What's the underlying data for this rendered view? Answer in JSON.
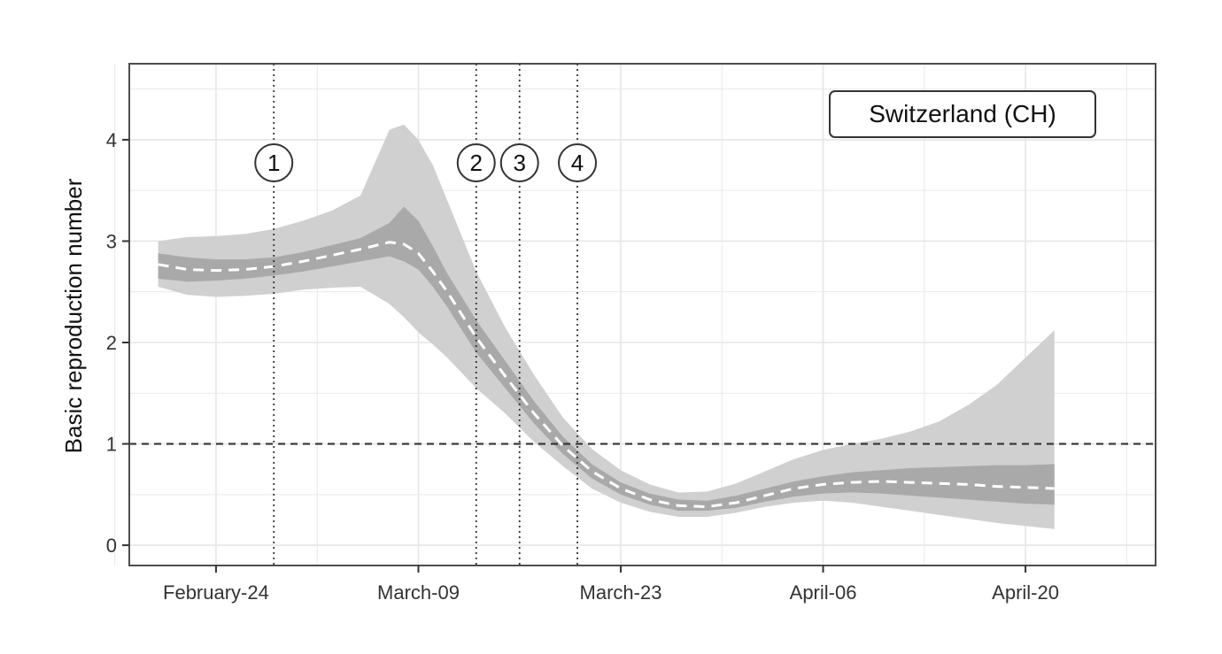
{
  "chart_data": {
    "type": "area",
    "title": "",
    "xlabel": "",
    "ylabel": "Basic reproduction number",
    "annotation_label": "Switzerland (CH)",
    "x_ticks": [
      "February-24",
      "March-09",
      "March-23",
      "April-06",
      "April-20"
    ],
    "x_tick_days": [
      6,
      20,
      34,
      48,
      62
    ],
    "x_range_days": [
      0,
      71
    ],
    "y_ticks": [
      "0",
      "1",
      "2",
      "3",
      "4"
    ],
    "y_tick_values": [
      0,
      1,
      2,
      3,
      4
    ],
    "ylim": [
      -0.2,
      4.75
    ],
    "grid": true,
    "reference_line": {
      "y": 1,
      "style": "dashed"
    },
    "interventions": [
      {
        "label": "1",
        "day": 10
      },
      {
        "label": "2",
        "day": 24
      },
      {
        "label": "3",
        "day": 27
      },
      {
        "label": "4",
        "day": 31
      }
    ],
    "x_days": [
      2,
      4,
      6,
      8,
      10,
      12,
      14,
      16,
      18,
      19,
      20,
      21,
      22,
      24,
      26,
      28,
      30,
      32,
      34,
      36,
      38,
      40,
      42,
      44,
      46,
      48,
      50,
      52,
      54,
      56,
      58,
      60,
      62,
      64
    ],
    "series": [
      {
        "role": "median",
        "style": "dashed-white",
        "values": [
          2.77,
          2.72,
          2.71,
          2.72,
          2.75,
          2.8,
          2.86,
          2.92,
          2.99,
          2.97,
          2.88,
          2.7,
          2.5,
          2.05,
          1.67,
          1.3,
          0.98,
          0.73,
          0.56,
          0.45,
          0.39,
          0.38,
          0.42,
          0.49,
          0.56,
          0.6,
          0.62,
          0.63,
          0.62,
          0.61,
          0.6,
          0.58,
          0.57,
          0.56
        ]
      },
      {
        "role": "inner_band_lower",
        "values": [
          2.63,
          2.6,
          2.61,
          2.63,
          2.66,
          2.7,
          2.75,
          2.8,
          2.85,
          2.8,
          2.72,
          2.55,
          2.35,
          1.9,
          1.55,
          1.2,
          0.9,
          0.66,
          0.5,
          0.4,
          0.34,
          0.34,
          0.37,
          0.43,
          0.48,
          0.51,
          0.52,
          0.51,
          0.49,
          0.47,
          0.45,
          0.43,
          0.41,
          0.4
        ]
      },
      {
        "role": "inner_band_upper",
        "values": [
          2.88,
          2.84,
          2.82,
          2.82,
          2.84,
          2.89,
          2.96,
          3.03,
          3.18,
          3.34,
          3.2,
          2.95,
          2.68,
          2.22,
          1.82,
          1.42,
          1.07,
          0.8,
          0.62,
          0.51,
          0.45,
          0.44,
          0.49,
          0.56,
          0.63,
          0.68,
          0.72,
          0.74,
          0.76,
          0.77,
          0.78,
          0.79,
          0.79,
          0.8
        ]
      },
      {
        "role": "outer_band_lower",
        "values": [
          2.55,
          2.47,
          2.45,
          2.46,
          2.48,
          2.52,
          2.54,
          2.55,
          2.38,
          2.25,
          2.1,
          1.98,
          1.85,
          1.55,
          1.3,
          1.02,
          0.78,
          0.56,
          0.42,
          0.33,
          0.28,
          0.28,
          0.32,
          0.38,
          0.42,
          0.44,
          0.42,
          0.38,
          0.34,
          0.3,
          0.26,
          0.22,
          0.19,
          0.16
        ]
      },
      {
        "role": "outer_band_upper",
        "values": [
          3.0,
          3.04,
          3.05,
          3.07,
          3.12,
          3.2,
          3.3,
          3.45,
          4.1,
          4.15,
          4.0,
          3.75,
          3.4,
          2.7,
          2.15,
          1.68,
          1.26,
          0.95,
          0.74,
          0.6,
          0.52,
          0.53,
          0.61,
          0.73,
          0.85,
          0.94,
          1.0,
          1.05,
          1.12,
          1.22,
          1.38,
          1.58,
          1.85,
          2.12
        ]
      }
    ],
    "colors": {
      "outer_band": "#d0d0d0",
      "inner_band": "#a9a9a9",
      "median": "#ffffff",
      "grid": "#e6e6e6",
      "frame": "#4d4d4d",
      "vlines": "#333333",
      "hline": "#333333"
    }
  }
}
